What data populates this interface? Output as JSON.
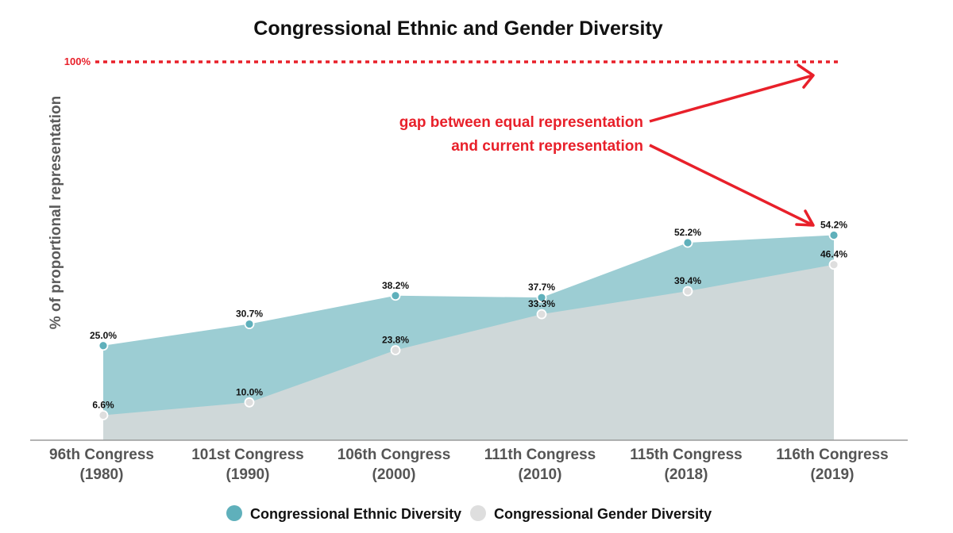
{
  "chart_data": {
    "type": "area",
    "title": "Congressional Ethnic and Gender Diversity",
    "ylabel": "% of proportional representation",
    "xlabel": "",
    "ylim": [
      0,
      100
    ],
    "categories": [
      [
        "96th Congress",
        "(1980)"
      ],
      [
        "101st Congress",
        "(1990)"
      ],
      [
        "106th Congress",
        "(2000)"
      ],
      [
        "111th Congress",
        "(2010)"
      ],
      [
        "115th Congress",
        "(2018)"
      ],
      [
        "116th Congress",
        "(2019)"
      ]
    ],
    "series": [
      {
        "name": "Congressional Ethnic Diversity",
        "color": "#9ccdd3",
        "marker_color": "#5fb0bb",
        "values": [
          25.0,
          30.7,
          38.2,
          37.7,
          52.2,
          54.2
        ],
        "labels": [
          "25.0%",
          "30.7%",
          "38.2%",
          "37.7%",
          "52.2%",
          "54.2%"
        ]
      },
      {
        "name": "Congressional Gender Diversity",
        "color": "#cfd8d9",
        "marker_color": "#dedede",
        "values": [
          6.6,
          10.0,
          23.8,
          33.3,
          39.4,
          46.4
        ],
        "labels": [
          "6.6%",
          "10.0%",
          "23.8%",
          "33.3%",
          "39.4%",
          "46.4%"
        ]
      }
    ],
    "reference_line": {
      "value": 100,
      "label": "100%",
      "color": "#e8202a"
    },
    "annotation": {
      "lines": [
        "gap between equal representation",
        "and current representation"
      ],
      "color": "#e8202a"
    },
    "legend": {
      "position": "bottom-center"
    },
    "grid": false
  }
}
